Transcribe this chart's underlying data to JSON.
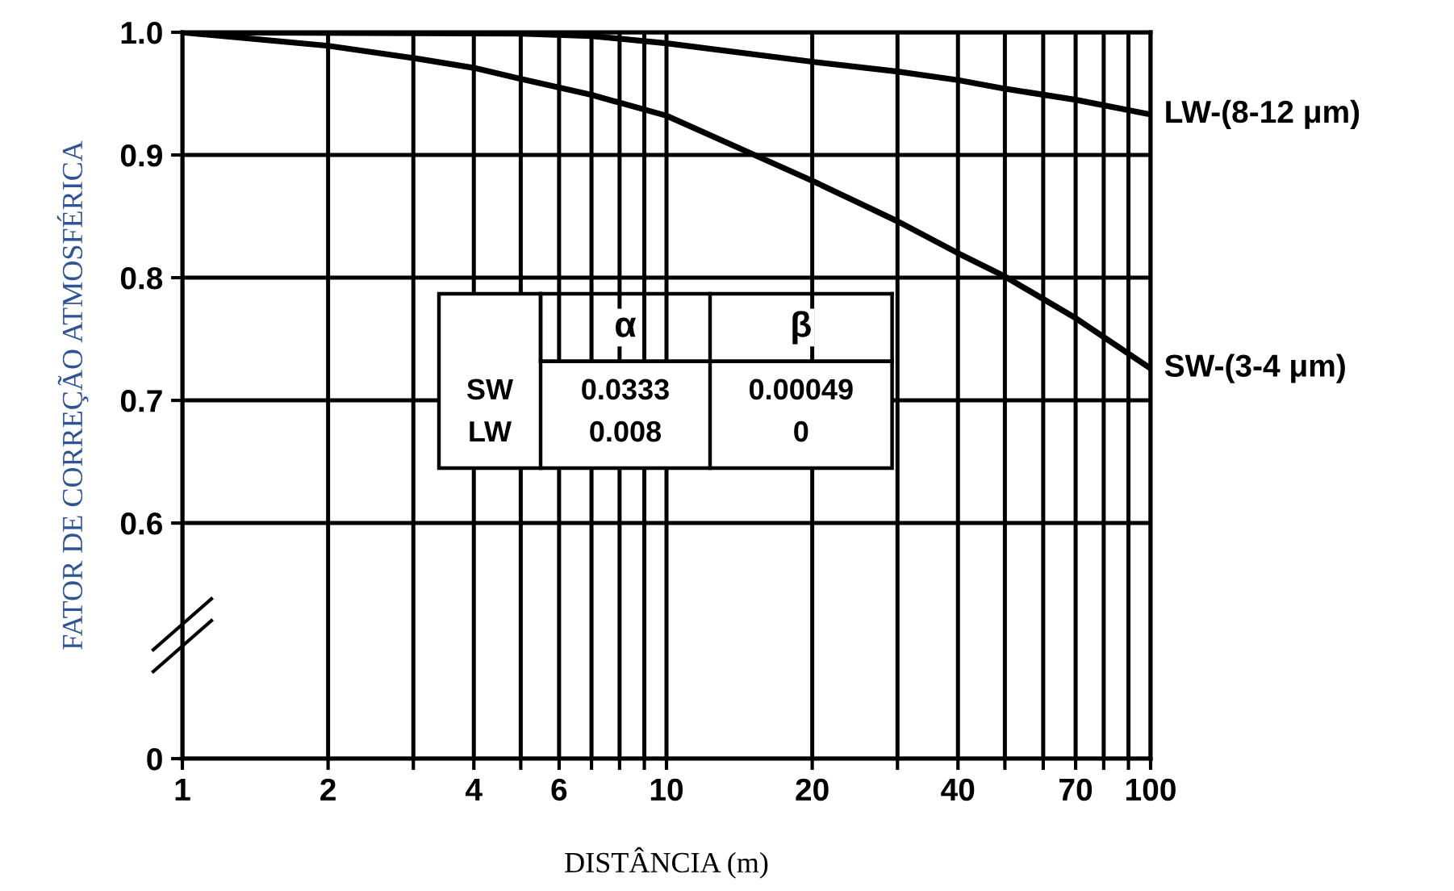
{
  "chart_data": {
    "type": "line",
    "xlabel": "DISTÂNCIA (m)",
    "ylabel": "FATOR DE CORREÇÃO ATMOSFÉRICA",
    "log": "x",
    "grid": true,
    "marker": "none",
    "line_style": "solid",
    "xlim": [
      1,
      100
    ],
    "ylim": [
      0.408,
      1.0
    ],
    "xticks": [
      1,
      2,
      {
        "value": 3,
        "label": null
      },
      4,
      {
        "value": 5,
        "label": null
      },
      6,
      {
        "value": 7,
        "label": null
      },
      {
        "value": 8,
        "label": null
      },
      {
        "value": 9,
        "label": null
      },
      10,
      20,
      {
        "value": 30,
        "label": null
      },
      40,
      {
        "value": 50,
        "label": null
      },
      {
        "value": 60,
        "label": null
      },
      70,
      {
        "value": 80,
        "label": null
      },
      {
        "value": 90,
        "label": null
      },
      100
    ],
    "yticks": [
      {
        "value": 0.408,
        "label": "0"
      },
      0.6,
      0.7,
      0.8,
      0.9,
      {
        "value": 1.0,
        "label": "1.0"
      }
    ],
    "series": [
      {
        "name": "LW-(8-12 μm)",
        "color": "#000000",
        "x": [
          1,
          5,
          7,
          10,
          20,
          30,
          40,
          50,
          70,
          100
        ],
        "values": [
          1.0,
          0.999,
          0.997,
          0.991,
          0.976,
          0.968,
          0.961,
          0.954,
          0.945,
          0.933
        ]
      },
      {
        "name": "SW-(3-4 μm)",
        "color": "#000000",
        "x": [
          1,
          2,
          3,
          4,
          5,
          7,
          10,
          15,
          20,
          30,
          40,
          50,
          70,
          100
        ],
        "values": [
          1.0,
          0.989,
          0.979,
          0.971,
          0.962,
          0.949,
          0.932,
          0.901,
          0.879,
          0.846,
          0.82,
          0.801,
          0.767,
          0.726
        ]
      }
    ],
    "annotations": [
      "α",
      "β",
      "SW",
      "0.0333",
      "0.00049",
      "LW",
      "0.008",
      "0"
    ],
    "legend": false
  }
}
